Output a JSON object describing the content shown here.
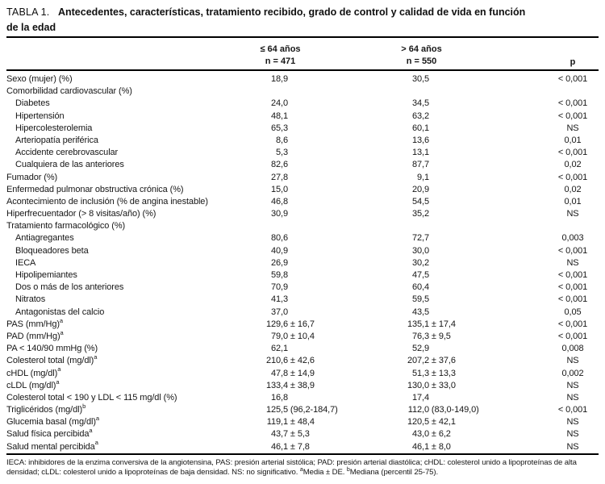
{
  "title": {
    "label": "TABLA 1.",
    "line1": "Antecedentes, características, tratamiento recibido, grado de control y calidad de vida en función",
    "line2": "de la edad"
  },
  "columns": {
    "col1": {
      "line1": "≤ 64 años",
      "line2": "n = 471"
    },
    "col2": {
      "line1": "> 64 años",
      "line2": "n = 550"
    },
    "p": "p"
  },
  "table": {
    "rows": [
      {
        "label": "Sexo (mujer) (%)",
        "indent": 0,
        "sup": "",
        "v1": "18,9",
        "v2": "30,5",
        "p": "< 0,001"
      },
      {
        "label": "Comorbilidad cardiovascular (%)",
        "indent": 0,
        "sup": "",
        "v1": "",
        "v2": "",
        "p": ""
      },
      {
        "label": "Diabetes",
        "indent": 1,
        "sup": "",
        "v1": "24,0",
        "v2": "34,5",
        "p": "< 0,001"
      },
      {
        "label": "Hipertensión",
        "indent": 1,
        "sup": "",
        "v1": "48,1",
        "v2": "63,2",
        "p": "< 0,001"
      },
      {
        "label": "Hipercolesterolemia",
        "indent": 1,
        "sup": "",
        "v1": "65,3",
        "v2": "60,1",
        "p": "NS"
      },
      {
        "label": "Arteriopatía periférica",
        "indent": 1,
        "sup": "",
        "v1": "8,6",
        "v2": "13,6",
        "p": "0,01"
      },
      {
        "label": "Accidente cerebrovascular",
        "indent": 1,
        "sup": "",
        "v1": "5,3",
        "v2": "13,1",
        "p": "< 0,001"
      },
      {
        "label": "Cualquiera de las anteriores",
        "indent": 1,
        "sup": "",
        "v1": "82,6",
        "v2": "87,7",
        "p": "0,02"
      },
      {
        "label": "Fumador (%)",
        "indent": 0,
        "sup": "",
        "v1": "27,8",
        "v2": "9,1",
        "p": "< 0,001"
      },
      {
        "label": "Enfermedad pulmonar obstructiva crónica (%)",
        "indent": 0,
        "sup": "",
        "v1": "15,0",
        "v2": "20,9",
        "p": "0,02"
      },
      {
        "label": "Acontecimiento de inclusión (% de angina inestable)",
        "indent": 0,
        "sup": "",
        "v1": "46,8",
        "v2": "54,5",
        "p": "0,01"
      },
      {
        "label": "Hiperfrecuentador (> 8 visitas/año) (%)",
        "indent": 0,
        "sup": "",
        "v1": "30,9",
        "v2": "35,2",
        "p": "NS"
      },
      {
        "label": "Tratamiento farmacológico (%)",
        "indent": 0,
        "sup": "",
        "v1": "",
        "v2": "",
        "p": ""
      },
      {
        "label": "Antiagregantes",
        "indent": 1,
        "sup": "",
        "v1": "80,6",
        "v2": "72,7",
        "p": "0,003"
      },
      {
        "label": "Bloqueadores beta",
        "indent": 1,
        "sup": "",
        "v1": "40,9",
        "v2": "30,0",
        "p": "< 0,001"
      },
      {
        "label": "IECA",
        "indent": 1,
        "sup": "",
        "v1": "26,9",
        "v2": "30,2",
        "p": "NS"
      },
      {
        "label": "Hipolipemiantes",
        "indent": 1,
        "sup": "",
        "v1": "59,8",
        "v2": "47,5",
        "p": "< 0,001"
      },
      {
        "label": "Dos o más de los anteriores",
        "indent": 1,
        "sup": "",
        "v1": "70,9",
        "v2": "60,4",
        "p": "< 0,001"
      },
      {
        "label": "Nitratos",
        "indent": 1,
        "sup": "",
        "v1": "41,3",
        "v2": "59,5",
        "p": "< 0,001"
      },
      {
        "label": "Antagonistas del calcio",
        "indent": 1,
        "sup": "",
        "v1": "37,0",
        "v2": "43,5",
        "p": "0,05"
      },
      {
        "label": "PAS (mm/Hg)",
        "indent": 0,
        "sup": "a",
        "v1": "129,6 ± 16,7",
        "v2": "135,1 ± 17,4",
        "p": "< 0,001"
      },
      {
        "label": "PAD (mm/Hg)",
        "indent": 0,
        "sup": "a",
        "v1": "79,0 ± 10,4",
        "v2": "76,3 ± 9,5",
        "p": "< 0,001"
      },
      {
        "label": "PA < 140/90 mmHg (%)",
        "indent": 0,
        "sup": "",
        "v1": "62,1",
        "v2": "52,9",
        "p": "0,008"
      },
      {
        "label": "Colesterol total (mg/dl)",
        "indent": 0,
        "sup": "a",
        "v1": "210,6 ± 42,6",
        "v2": "207,2 ± 37,6",
        "p": "NS"
      },
      {
        "label": "cHDL (mg/dl)",
        "indent": 0,
        "sup": "a",
        "v1": "47,8 ± 14,9",
        "v2": "51,3 ± 13,3",
        "p": "0,002"
      },
      {
        "label": "cLDL (mg/dl)",
        "indent": 0,
        "sup": "a",
        "v1": "133,4 ± 38,9",
        "v2": "130,0 ± 33,0",
        "p": "NS"
      },
      {
        "label": "Colesterol total < 190 y LDL < 115 mg/dl (%)",
        "indent": 0,
        "sup": "",
        "v1": "16,8",
        "v2": "17,4",
        "p": "NS"
      },
      {
        "label": "Triglicéridos (mg/dl)",
        "indent": 0,
        "sup": "b",
        "v1": "125,5 (96,2-184,7)",
        "v2": "112,0 (83,0-149,0)",
        "p": "< 0,001"
      },
      {
        "label": "Glucemia basal (mg/dl)",
        "indent": 0,
        "sup": "a",
        "v1": "119,1 ± 48,4",
        "v2": "120,5 ± 42,1",
        "p": "NS"
      },
      {
        "label": "Salud física percibida",
        "indent": 0,
        "sup": "a",
        "v1": "43,7 ± 5,3",
        "v2": "43,0 ± 6,2",
        "p": "NS"
      },
      {
        "label": "Salud mental percibida",
        "indent": 0,
        "sup": "a",
        "v1": "46,1 ± 7,8",
        "v2": "46,1 ± 8,0",
        "p": "NS"
      }
    ]
  },
  "footnote": [
    {
      "t": "IECA: inhibidores de la enzima conversiva de la angiotensina, PAS: presión arterial sistólica; PAD: presión arterial diastólica; cHDL: colesterol unido a lipoproteínas de alta densidad; cLDL: colesterol unido a lipoproteínas de baja densidad. NS: no significativo. ",
      "sup": false
    },
    {
      "t": "a",
      "sup": true
    },
    {
      "t": "Media ± DE. ",
      "sup": false
    },
    {
      "t": "b",
      "sup": true
    },
    {
      "t": "Mediana (percentil 25-75).",
      "sup": false
    }
  ],
  "colors": {
    "text": "#161616",
    "rule": "#000000",
    "background": "#ffffff"
  }
}
